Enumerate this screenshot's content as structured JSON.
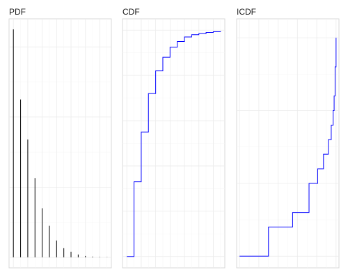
{
  "chart_data": [
    {
      "type": "bar",
      "title": "PDF",
      "color": "#000000",
      "x": [
        0,
        1,
        2,
        3,
        4,
        5,
        6,
        7,
        8,
        9,
        10,
        11,
        12,
        13
      ],
      "values": [
        0.325,
        0.225,
        0.168,
        0.113,
        0.07,
        0.045,
        0.024,
        0.013,
        0.008,
        0.004,
        0.002,
        0.001,
        0.0005,
        0.0003
      ],
      "xlim": [
        -0.6,
        13.6
      ],
      "ylim": [
        -0.015,
        0.34
      ],
      "grid": true
    },
    {
      "type": "line",
      "step": true,
      "title": "CDF",
      "color": "#0000ff",
      "x": [
        0,
        1,
        2,
        3,
        4,
        5,
        6,
        7,
        8,
        9,
        10,
        11,
        12,
        13
      ],
      "values": [
        0.0,
        0.33,
        0.55,
        0.72,
        0.82,
        0.88,
        0.925,
        0.95,
        0.97,
        0.98,
        0.985,
        0.99,
        0.993,
        0.995
      ],
      "xlim": [
        -0.6,
        13.6
      ],
      "ylim": [
        -0.05,
        1.05
      ],
      "grid": true
    },
    {
      "type": "line",
      "step": true,
      "title": "ICDF",
      "color": "#0000ff",
      "x": [
        0.0,
        0.3,
        0.55,
        0.72,
        0.81,
        0.87,
        0.92,
        0.95,
        0.97,
        0.98,
        0.99,
        1.0
      ],
      "values": [
        0,
        2,
        3,
        5,
        6,
        7,
        8,
        9,
        10,
        11,
        13,
        15
      ],
      "xlim": [
        -0.03,
        1.03
      ],
      "ylim": [
        -0.8,
        16.3
      ],
      "grid": true
    }
  ]
}
